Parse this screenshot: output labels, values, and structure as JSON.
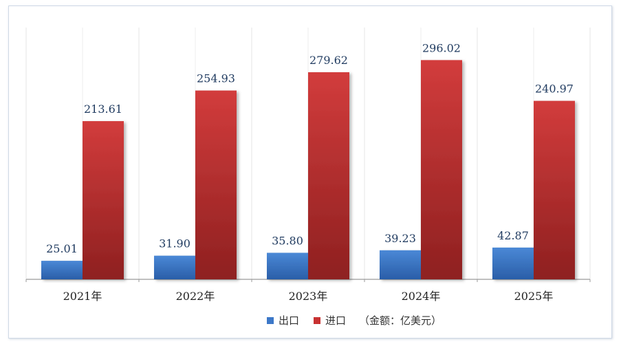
{
  "chart_data": {
    "type": "bar",
    "categories": [
      "2021年",
      "2022年",
      "2023年",
      "2024年",
      "2025年"
    ],
    "series": [
      {
        "name": "出口",
        "values": [
          25.01,
          31.9,
          35.8,
          39.23,
          42.87
        ],
        "color": "#3c78c8"
      },
      {
        "name": "进口",
        "values": [
          213.61,
          254.93,
          279.62,
          296.02,
          240.97
        ],
        "color": "#c83232"
      }
    ],
    "value_labels": [
      [
        "25.01",
        "31.90",
        "35.80",
        "39.23",
        "42.87"
      ],
      [
        "213.61",
        "254.93",
        "279.62",
        "296.02",
        "240.97"
      ]
    ],
    "unit_note": "（金额：亿美元）",
    "ylim": [
      0,
      340
    ],
    "grid": true,
    "legend_position": "bottom-center"
  }
}
